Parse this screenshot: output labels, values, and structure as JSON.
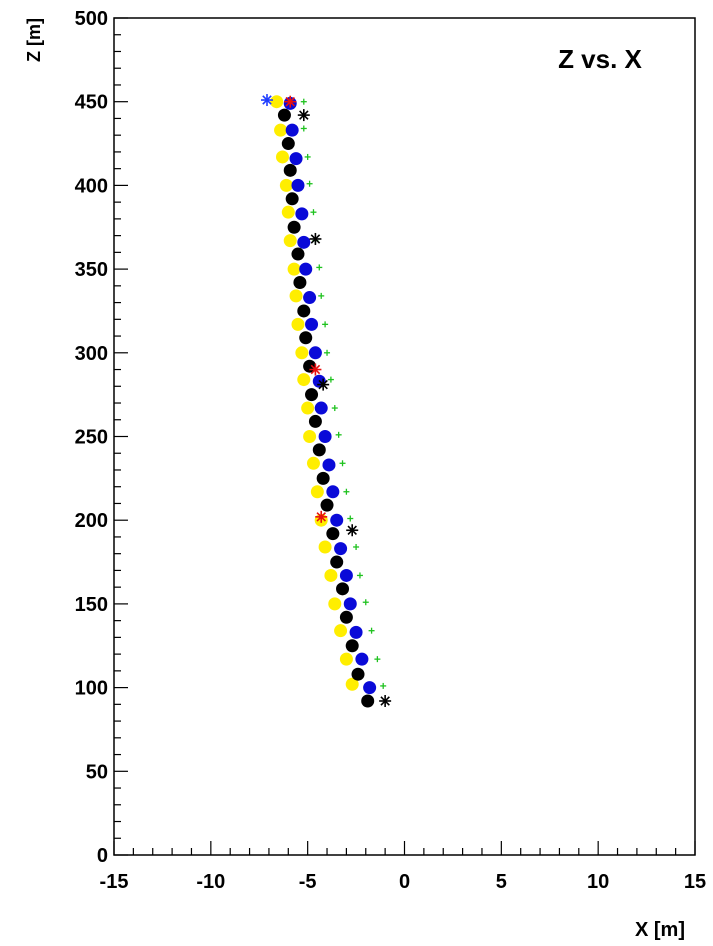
{
  "chart_data": {
    "type": "scatter",
    "title": "Z  vs. X",
    "xlabel": "X [m]",
    "ylabel": "Z [m]",
    "xlim": [
      -15,
      15
    ],
    "ylim": [
      0,
      500
    ],
    "xticks": [
      "-15",
      "-10",
      "-5",
      "0",
      "5",
      "10",
      "15"
    ],
    "yticks": [
      "0",
      "50",
      "100",
      "150",
      "200",
      "250",
      "300",
      "350",
      "400",
      "450",
      "500"
    ],
    "grid": false,
    "legend": "none",
    "colors": {
      "yellow": "#ffee00",
      "black": "#000000",
      "blue": "#0a0ad8",
      "green": "#1fc21f",
      "red": "#e81010",
      "star_black": "#000000",
      "star_blue": "#1e3cff"
    },
    "series": [
      {
        "marker": "circle",
        "color": "yellow",
        "points": [
          [
            -6.6,
            450
          ],
          [
            -6.4,
            433
          ],
          [
            -6.3,
            417
          ],
          [
            -6.1,
            400
          ],
          [
            -6.0,
            384
          ],
          [
            -5.9,
            367
          ],
          [
            -5.7,
            350
          ],
          [
            -5.6,
            334
          ],
          [
            -5.5,
            317
          ],
          [
            -5.3,
            300
          ],
          [
            -5.2,
            284
          ],
          [
            -5.0,
            267
          ],
          [
            -4.9,
            250
          ],
          [
            -4.7,
            234
          ],
          [
            -4.5,
            217
          ],
          [
            -4.3,
            200
          ],
          [
            -4.1,
            184
          ],
          [
            -3.8,
            167
          ],
          [
            -3.6,
            150
          ],
          [
            -3.3,
            134
          ],
          [
            -3.0,
            117
          ],
          [
            -2.7,
            102
          ]
        ]
      },
      {
        "marker": "circle",
        "color": "black",
        "points": [
          [
            -6.2,
            442
          ],
          [
            -6.0,
            425
          ],
          [
            -5.9,
            409
          ],
          [
            -5.8,
            392
          ],
          [
            -5.7,
            375
          ],
          [
            -5.5,
            359
          ],
          [
            -5.4,
            342
          ],
          [
            -5.2,
            325
          ],
          [
            -5.1,
            309
          ],
          [
            -4.9,
            292
          ],
          [
            -4.8,
            275
          ],
          [
            -4.6,
            259
          ],
          [
            -4.4,
            242
          ],
          [
            -4.2,
            225
          ],
          [
            -4.0,
            209
          ],
          [
            -3.7,
            192
          ],
          [
            -3.5,
            175
          ],
          [
            -3.2,
            159
          ],
          [
            -3.0,
            142
          ],
          [
            -2.7,
            125
          ],
          [
            -2.4,
            108
          ],
          [
            -1.9,
            92
          ]
        ]
      },
      {
        "marker": "circle",
        "color": "blue",
        "points": [
          [
            -5.9,
            449
          ],
          [
            -5.8,
            433
          ],
          [
            -5.6,
            416
          ],
          [
            -5.5,
            400
          ],
          [
            -5.3,
            383
          ],
          [
            -5.2,
            366
          ],
          [
            -5.1,
            350
          ],
          [
            -4.9,
            333
          ],
          [
            -4.8,
            317
          ],
          [
            -4.6,
            300
          ],
          [
            -4.4,
            283
          ],
          [
            -4.3,
            267
          ],
          [
            -4.1,
            250
          ],
          [
            -3.9,
            233
          ],
          [
            -3.7,
            217
          ],
          [
            -3.5,
            200
          ],
          [
            -3.3,
            183
          ],
          [
            -3.0,
            167
          ],
          [
            -2.8,
            150
          ],
          [
            -2.5,
            133
          ],
          [
            -2.2,
            117
          ],
          [
            -1.8,
            100
          ]
        ]
      },
      {
        "marker": "cross",
        "color": "green",
        "points": [
          [
            -5.2,
            450
          ],
          [
            -5.2,
            434
          ],
          [
            -5.0,
            417
          ],
          [
            -4.9,
            401
          ],
          [
            -4.7,
            384
          ],
          [
            -4.6,
            367
          ],
          [
            -4.4,
            351
          ],
          [
            -4.3,
            334
          ],
          [
            -4.1,
            317
          ],
          [
            -4.0,
            300
          ],
          [
            -3.8,
            284
          ],
          [
            -3.6,
            267
          ],
          [
            -3.4,
            251
          ],
          [
            -3.2,
            234
          ],
          [
            -3.0,
            217
          ],
          [
            -2.8,
            201
          ],
          [
            -2.5,
            184
          ],
          [
            -2.3,
            167
          ],
          [
            -2.0,
            151
          ],
          [
            -1.7,
            134
          ],
          [
            -1.4,
            117
          ],
          [
            -1.1,
            101
          ]
        ]
      },
      {
        "marker": "star",
        "color": "star_black",
        "points": [
          [
            -5.2,
            442
          ],
          [
            -4.6,
            368
          ],
          [
            -4.2,
            281
          ],
          [
            -2.7,
            194
          ],
          [
            -1.0,
            92
          ]
        ]
      },
      {
        "marker": "star",
        "color": "red",
        "points": [
          [
            -5.9,
            450
          ],
          [
            -4.6,
            290
          ],
          [
            -4.3,
            202
          ]
        ]
      },
      {
        "marker": "star",
        "color": "star_blue",
        "points": [
          [
            -7.1,
            451
          ]
        ]
      }
    ]
  }
}
